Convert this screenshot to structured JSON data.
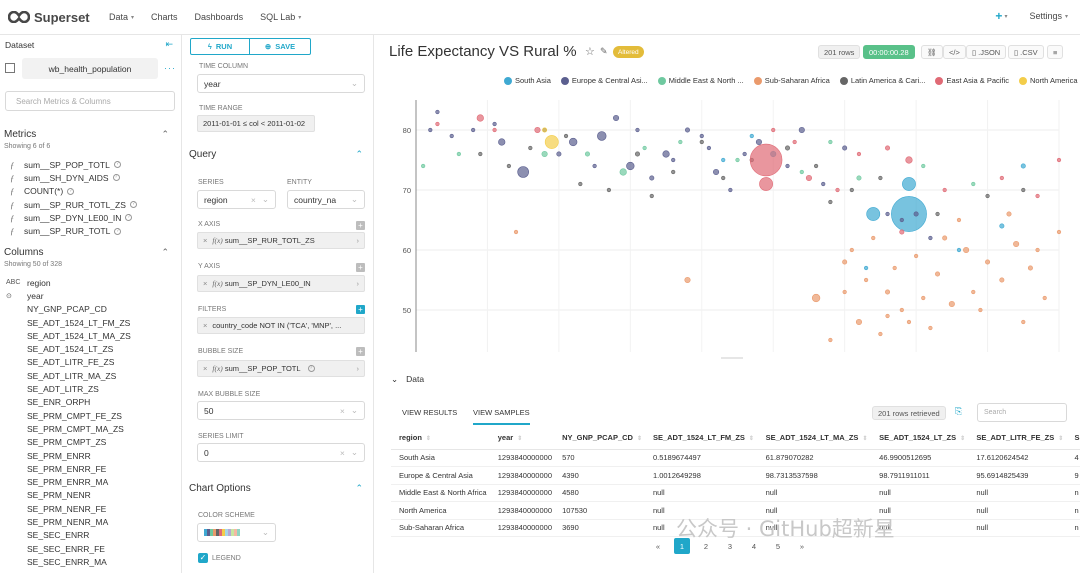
{
  "nav": {
    "brand": "Superset",
    "items": [
      "Data",
      "Charts",
      "Dashboards",
      "SQL Lab"
    ],
    "settings": "Settings"
  },
  "dataset_panel": {
    "title": "Dataset",
    "name": "wb_health_population",
    "search_placeholder": "Search Metrics & Columns",
    "metrics_title": "Metrics",
    "metrics_count": "Showing 6 of 6",
    "metrics": [
      "sum__SP_POP_TOTL",
      "sum__SH_DYN_AIDS",
      "COUNT(*)",
      "sum__SP_RUR_TOTL_ZS",
      "sum__SP_DYN_LE00_IN",
      "sum__SP_RUR_TOTL"
    ],
    "columns_title": "Columns",
    "columns_count": "Showing 50 of 328",
    "columns": [
      {
        "type": "ABC",
        "name": "region"
      },
      {
        "type": "clock",
        "name": "year"
      },
      {
        "type": "",
        "name": "NY_GNP_PCAP_CD"
      },
      {
        "type": "",
        "name": "SE_ADT_1524_LT_FM_ZS"
      },
      {
        "type": "",
        "name": "SE_ADT_1524_LT_MA_ZS"
      },
      {
        "type": "",
        "name": "SE_ADT_1524_LT_ZS"
      },
      {
        "type": "",
        "name": "SE_ADT_LITR_FE_ZS"
      },
      {
        "type": "",
        "name": "SE_ADT_LITR_MA_ZS"
      },
      {
        "type": "",
        "name": "SE_ADT_LITR_ZS"
      },
      {
        "type": "",
        "name": "SE_ENR_ORPH"
      },
      {
        "type": "",
        "name": "SE_PRM_CMPT_FE_ZS"
      },
      {
        "type": "",
        "name": "SE_PRM_CMPT_MA_ZS"
      },
      {
        "type": "",
        "name": "SE_PRM_CMPT_ZS"
      },
      {
        "type": "",
        "name": "SE_PRM_ENRR"
      },
      {
        "type": "",
        "name": "SE_PRM_ENRR_FE"
      },
      {
        "type": "",
        "name": "SE_PRM_ENRR_MA"
      },
      {
        "type": "",
        "name": "SE_PRM_NENR"
      },
      {
        "type": "",
        "name": "SE_PRM_NENR_FE"
      },
      {
        "type": "",
        "name": "SE_PRM_NENR_MA"
      },
      {
        "type": "",
        "name": "SE_SEC_ENRR"
      },
      {
        "type": "",
        "name": "SE_SEC_ENRR_FE"
      },
      {
        "type": "",
        "name": "SE_SEC_ENRR_MA"
      }
    ]
  },
  "controls": {
    "run": "RUN",
    "save": "SAVE",
    "time_column_label": "TIME COLUMN",
    "time_column_value": "year",
    "time_range_label": "TIME RANGE",
    "time_range_value": "2011-01-01 ≤ col < 2011-01-02",
    "query_title": "Query",
    "series_label": "SERIES",
    "series_value": "region",
    "entity_label": "ENTITY",
    "entity_value": "country_na",
    "x_axis_label": "X AXIS",
    "x_axis_value": "sum__SP_RUR_TOTL_ZS",
    "y_axis_label": "Y AXIS",
    "y_axis_value": "sum__SP_DYN_LE00_IN",
    "filters_label": "FILTERS",
    "filters_value": "country_code NOT IN ('TCA', 'MNP', ...",
    "bubble_size_label": "BUBBLE SIZE",
    "bubble_size_value": "sum__SP_POP_TOTL",
    "max_bubble_label": "MAX BUBBLE SIZE",
    "max_bubble_value": "50",
    "series_limit_label": "SERIES LIMIT",
    "series_limit_value": "0",
    "chart_options_title": "Chart Options",
    "color_scheme_label": "COLOR SCHEME",
    "legend_label": "LEGEND",
    "fx": "f(x)"
  },
  "header": {
    "title": "Life Expectancy VS Rural %",
    "altered": "Altered",
    "rows": "201 rows",
    "time": "00:00:00.28",
    "json": ".JSON",
    "csv": ".CSV"
  },
  "legend": [
    {
      "name": "South Asia",
      "color": "#3fa9d2"
    },
    {
      "name": "Europe & Central Asi...",
      "color": "#5b5f8f"
    },
    {
      "name": "Middle East & North ...",
      "color": "#6fc9a0"
    },
    {
      "name": "Sub-Saharan Africa",
      "color": "#ea9a6c"
    },
    {
      "name": "Latin America & Cari...",
      "color": "#666666"
    },
    {
      "name": "East Asia & Pacific",
      "color": "#e06a75"
    },
    {
      "name": "North America",
      "color": "#f3cd4a"
    }
  ],
  "chart_data": {
    "type": "scatter",
    "xlim": [
      0,
      90
    ],
    "ylim": [
      43,
      85
    ],
    "x_ticks": [
      0,
      10,
      20,
      30,
      40,
      50,
      60,
      70,
      80,
      90
    ],
    "y_ticks": [
      50,
      60,
      70,
      80
    ],
    "series": [
      {
        "name": "South Asia",
        "color": "#3fa9d2",
        "points": [
          [
            64,
            66,
            12
          ],
          [
            69,
            71,
            12
          ],
          [
            69,
            66,
            32
          ],
          [
            50,
            76,
            5
          ],
          [
            85,
            74,
            4
          ],
          [
            82,
            64,
            4
          ],
          [
            76,
            60,
            3
          ],
          [
            43,
            75,
            3
          ],
          [
            47,
            79,
            3
          ],
          [
            63,
            57,
            2
          ]
        ]
      },
      {
        "name": "Europe & Central Asia",
        "color": "#5b5f8f",
        "points": [
          [
            15,
            73,
            10
          ],
          [
            22,
            78,
            7
          ],
          [
            30,
            74,
            7
          ],
          [
            26,
            79,
            8
          ],
          [
            12,
            78,
            6
          ],
          [
            35,
            76,
            6
          ],
          [
            42,
            73,
            5
          ],
          [
            48,
            78,
            5
          ],
          [
            54,
            80,
            5
          ],
          [
            38,
            80,
            4
          ],
          [
            60,
            77,
            4
          ],
          [
            33,
            72,
            4
          ],
          [
            20,
            76,
            4
          ],
          [
            28,
            82,
            5
          ],
          [
            8,
            80,
            3
          ],
          [
            5,
            79,
            3
          ],
          [
            25,
            74,
            3
          ],
          [
            44,
            70,
            3
          ],
          [
            52,
            74,
            3
          ],
          [
            57,
            71,
            3
          ],
          [
            68,
            65,
            3
          ],
          [
            70,
            66,
            4
          ],
          [
            66,
            66,
            3
          ],
          [
            72,
            62,
            3
          ],
          [
            18,
            80,
            3
          ],
          [
            36,
            75,
            3
          ],
          [
            41,
            77,
            3
          ],
          [
            3,
            83,
            3
          ],
          [
            11,
            81,
            3
          ],
          [
            31,
            80,
            3
          ],
          [
            40,
            79,
            3
          ],
          [
            46,
            76,
            3
          ],
          [
            2,
            80,
            3
          ]
        ]
      },
      {
        "name": "Middle East & North Africa",
        "color": "#6fc9a0",
        "points": [
          [
            18,
            76,
            5
          ],
          [
            29,
            73,
            6
          ],
          [
            24,
            76,
            4
          ],
          [
            32,
            77,
            3
          ],
          [
            45,
            75,
            3
          ],
          [
            37,
            78,
            3
          ],
          [
            1,
            74,
            3
          ],
          [
            6,
            76,
            3
          ],
          [
            54,
            73,
            3
          ],
          [
            62,
            72,
            4
          ],
          [
            71,
            74,
            3
          ],
          [
            58,
            78,
            3
          ],
          [
            78,
            71,
            3
          ]
        ]
      },
      {
        "name": "Sub-Saharan Africa",
        "color": "#ea9a6c",
        "points": [
          [
            38,
            55,
            5
          ],
          [
            56,
            52,
            7
          ],
          [
            62,
            48,
            5
          ],
          [
            60,
            58,
            4
          ],
          [
            66,
            53,
            4
          ],
          [
            70,
            59,
            3
          ],
          [
            73,
            56,
            4
          ],
          [
            75,
            51,
            5
          ],
          [
            77,
            60,
            5
          ],
          [
            80,
            58,
            4
          ],
          [
            82,
            55,
            4
          ],
          [
            84,
            61,
            5
          ],
          [
            86,
            57,
            4
          ],
          [
            88,
            52,
            3
          ],
          [
            65,
            46,
            3
          ],
          [
            63,
            55,
            3
          ],
          [
            68,
            50,
            3
          ],
          [
            72,
            47,
            3
          ],
          [
            85,
            48,
            3
          ],
          [
            90,
            63,
            3
          ],
          [
            79,
            50,
            3
          ],
          [
            74,
            62,
            4
          ],
          [
            58,
            45,
            3
          ],
          [
            61,
            60,
            3
          ],
          [
            67,
            57,
            3
          ],
          [
            71,
            52,
            3
          ],
          [
            83,
            66,
            4
          ],
          [
            87,
            60,
            3
          ],
          [
            76,
            65,
            3
          ],
          [
            64,
            62,
            3
          ],
          [
            69,
            48,
            3
          ],
          [
            78,
            53,
            3
          ],
          [
            60,
            53,
            3
          ],
          [
            66,
            49,
            3
          ],
          [
            14,
            63,
            3
          ]
        ]
      },
      {
        "name": "Latin America & Caribbean",
        "color": "#666666",
        "points": [
          [
            21,
            79,
            3
          ],
          [
            31,
            76,
            4
          ],
          [
            36,
            73,
            3
          ],
          [
            40,
            78,
            3
          ],
          [
            47,
            75,
            3
          ],
          [
            52,
            77,
            4
          ],
          [
            56,
            74,
            3
          ],
          [
            61,
            70,
            3
          ],
          [
            65,
            72,
            3
          ],
          [
            9,
            76,
            3
          ],
          [
            13,
            74,
            3
          ],
          [
            16,
            77,
            3
          ],
          [
            23,
            71,
            3
          ],
          [
            27,
            70,
            3
          ],
          [
            33,
            69,
            3
          ],
          [
            43,
            72,
            3
          ],
          [
            58,
            68,
            3
          ],
          [
            73,
            66,
            3
          ],
          [
            80,
            69,
            3
          ],
          [
            85,
            70,
            3
          ]
        ]
      },
      {
        "name": "East Asia & Pacific",
        "color": "#e06a75",
        "points": [
          [
            49,
            75,
            29
          ],
          [
            49,
            71,
            12
          ],
          [
            17,
            80,
            5
          ],
          [
            9,
            82,
            6
          ],
          [
            55,
            72,
            5
          ],
          [
            66,
            77,
            4
          ],
          [
            69,
            75,
            6
          ],
          [
            68,
            63,
            4
          ],
          [
            74,
            70,
            3
          ],
          [
            82,
            72,
            3
          ],
          [
            87,
            69,
            3
          ],
          [
            90,
            75,
            3
          ],
          [
            3,
            81,
            3
          ],
          [
            11,
            80,
            3
          ],
          [
            59,
            70,
            3
          ],
          [
            62,
            76,
            3
          ],
          [
            50,
            80,
            3
          ],
          [
            53,
            78,
            3
          ]
        ]
      },
      {
        "name": "North America",
        "color": "#f3cd4a",
        "points": [
          [
            19,
            78,
            12
          ],
          [
            18,
            80,
            4
          ]
        ]
      }
    ]
  },
  "data_panel": {
    "title": "Data",
    "tab_results": "VIEW RESULTS",
    "tab_samples": "VIEW SAMPLES",
    "rows_retrieved": "201 rows retrieved",
    "search_placeholder": "Search",
    "columns": [
      "region",
      "year",
      "NY_GNP_PCAP_CD",
      "SE_ADT_1524_LT_FM_ZS",
      "SE_ADT_1524_LT_MA_ZS",
      "SE_ADT_1524_LT_ZS",
      "SE_ADT_LITR_FE_ZS",
      "S"
    ],
    "rows": [
      [
        "South Asia",
        "1293840000000",
        "570",
        "0.5189674497",
        "61.879070282",
        "46.9900512695",
        "17.6120624542",
        "4"
      ],
      [
        "Europe & Central Asia",
        "1293840000000",
        "4390",
        "1.0012649298",
        "98.7313537598",
        "98.7911911011",
        "95.6914825439",
        "9"
      ],
      [
        "Middle East & North Africa",
        "1293840000000",
        "4580",
        "null",
        "null",
        "null",
        "null",
        "n"
      ],
      [
        "North America",
        "1293840000000",
        "107530",
        "null",
        "null",
        "null",
        "null",
        "n"
      ],
      [
        "Sub-Saharan Africa",
        "1293840000000",
        "3690",
        "null",
        "null",
        "null",
        "null",
        "n"
      ]
    ],
    "pages": [
      "«",
      "1",
      "2",
      "3",
      "4",
      "5",
      "»"
    ],
    "watermark": "公众号 · GitHub超新星"
  }
}
